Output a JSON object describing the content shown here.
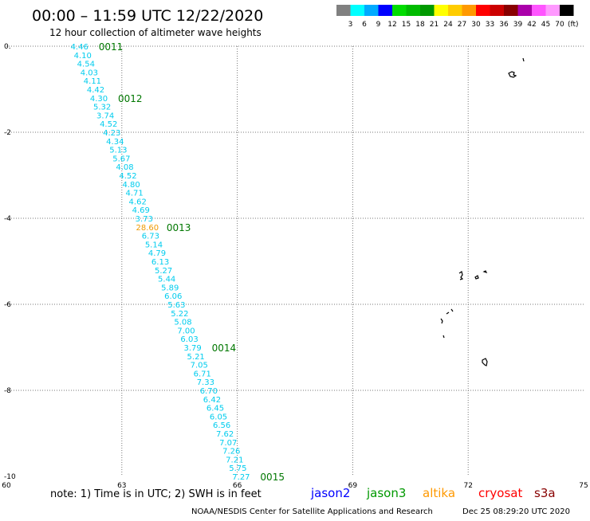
{
  "header": {
    "title": "00:00 – 11:59 UTC 12/22/2020",
    "subtitle": "12 hour collection of altimeter wave heights"
  },
  "colorbar": {
    "colors": [
      "#808080",
      "#00ffff",
      "#00aaff",
      "#0000ff",
      "#00dd00",
      "#00bb00",
      "#009900",
      "#ffff00",
      "#ffcc00",
      "#ff9900",
      "#ff0000",
      "#cc0000",
      "#880000",
      "#aa00aa",
      "#ff55ff",
      "#ff99ff",
      "#000000"
    ],
    "labels": [
      "3",
      "6",
      "9",
      "12",
      "15",
      "18",
      "21",
      "24",
      "27",
      "30",
      "33",
      "36",
      "39",
      "42",
      "45",
      "70"
    ],
    "unit": "(ft)"
  },
  "footer": {
    "note": "note: 1) Time is in UTC; 2) SWH is in feet",
    "satellites": [
      {
        "name": "jason2",
        "color": "#0000ff"
      },
      {
        "name": "jason3",
        "color": "#009900"
      },
      {
        "name": "altika",
        "color": "#ff9900"
      },
      {
        "name": "cryosat",
        "color": "#ff0000"
      },
      {
        "name": "s3a",
        "color": "#880000"
      }
    ],
    "credit": "NOAA/NESDIS Center for Satellite Applications and Research",
    "timestamp": "Dec 25 08:29:20 UTC 2020"
  },
  "chart_data": {
    "type": "scatter",
    "xlim": [
      60,
      75
    ],
    "ylim": [
      -10,
      0
    ],
    "x_ticks": [
      "60",
      "63",
      "66",
      "69",
      "72",
      "75"
    ],
    "y_ticks": [
      "0.",
      "-2",
      "-4",
      "-6",
      "-8",
      "-10"
    ],
    "grid": true,
    "track_start": [
      61.9,
      0.0
    ],
    "track_end": [
      66.1,
      -10.0
    ],
    "swh_points": [
      {
        "v": "4.46",
        "c": "#00ccee"
      },
      {
        "v": "4.10",
        "c": "#00ccee"
      },
      {
        "v": "4.54",
        "c": "#00ccee"
      },
      {
        "v": "4.03",
        "c": "#00ccee"
      },
      {
        "v": "4.11",
        "c": "#00ccee"
      },
      {
        "v": "4.42",
        "c": "#00ccee"
      },
      {
        "v": "4.30",
        "c": "#00ccee"
      },
      {
        "v": "5.32",
        "c": "#00ccee"
      },
      {
        "v": "3.74",
        "c": "#00ccee"
      },
      {
        "v": "4.52",
        "c": "#00ccee"
      },
      {
        "v": "4.23",
        "c": "#00ccee"
      },
      {
        "v": "4.34",
        "c": "#00ccee"
      },
      {
        "v": "5.13",
        "c": "#00ccee"
      },
      {
        "v": "5.67",
        "c": "#00ccee"
      },
      {
        "v": "4.08",
        "c": "#00ccee"
      },
      {
        "v": "4.52",
        "c": "#00ccee"
      },
      {
        "v": "4.80",
        "c": "#00ccee"
      },
      {
        "v": "4.71",
        "c": "#00ccee"
      },
      {
        "v": "4.62",
        "c": "#00ccee"
      },
      {
        "v": "4.69",
        "c": "#00ccee"
      },
      {
        "v": "3.73",
        "c": "#00ccee"
      },
      {
        "v": "28.60",
        "c": "#ee9900"
      },
      {
        "v": "6.73",
        "c": "#00ccee"
      },
      {
        "v": "5.14",
        "c": "#00ccee"
      },
      {
        "v": "4.79",
        "c": "#00ccee"
      },
      {
        "v": "6.13",
        "c": "#00ccee"
      },
      {
        "v": "5.27",
        "c": "#00ccee"
      },
      {
        "v": "5.44",
        "c": "#00ccee"
      },
      {
        "v": "5.89",
        "c": "#00ccee"
      },
      {
        "v": "6.06",
        "c": "#00ccee"
      },
      {
        "v": "5.63",
        "c": "#00ccee"
      },
      {
        "v": "5.22",
        "c": "#00ccee"
      },
      {
        "v": "5.08",
        "c": "#00ccee"
      },
      {
        "v": "7.00",
        "c": "#00ccee"
      },
      {
        "v": "6.03",
        "c": "#00ccee"
      },
      {
        "v": "3.79",
        "c": "#00ccee"
      },
      {
        "v": "5.21",
        "c": "#00ccee"
      },
      {
        "v": "7.05",
        "c": "#00ccee"
      },
      {
        "v": "6.71",
        "c": "#00ccee"
      },
      {
        "v": "7.33",
        "c": "#00ccee"
      },
      {
        "v": "6.70",
        "c": "#00ccee"
      },
      {
        "v": "6.42",
        "c": "#00ccee"
      },
      {
        "v": "6.45",
        "c": "#00ccee"
      },
      {
        "v": "6.05",
        "c": "#00ccee"
      },
      {
        "v": "6.56",
        "c": "#00ccee"
      },
      {
        "v": "7.62",
        "c": "#00ccee"
      },
      {
        "v": "7.07",
        "c": "#00ccee"
      },
      {
        "v": "7.26",
        "c": "#00ccee"
      },
      {
        "v": "7.21",
        "c": "#00ccee"
      },
      {
        "v": "5.75",
        "c": "#00ccee"
      },
      {
        "v": "7.27",
        "c": "#00ccee"
      }
    ],
    "time_labels": [
      {
        "t": "0011",
        "point_index": 0
      },
      {
        "t": "0012",
        "point_index": 6
      },
      {
        "t": "0013",
        "point_index": 21
      },
      {
        "t": "0014",
        "point_index": 35
      },
      {
        "t": "0015",
        "point_index": 50
      }
    ],
    "time_label_color": "#007700"
  }
}
